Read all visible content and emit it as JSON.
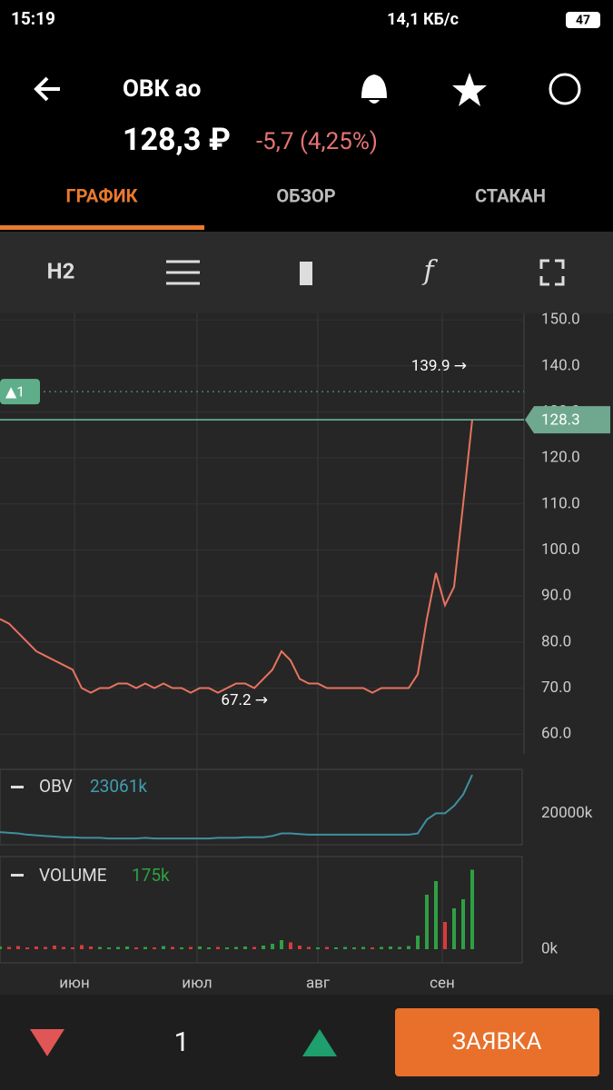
{
  "status_bar": {
    "time": "15:19",
    "speed": "14,1 КБ/с",
    "battery": "47"
  },
  "header": {
    "title": "ОВК ао",
    "price": "128,3 ₽",
    "change": "-5,7 (4,25%)"
  },
  "tabs": [
    "ГРАФИК",
    "ОБЗОР",
    "СТАКАН"
  ],
  "toolbar": {
    "interval": "H2"
  },
  "chart_data": {
    "type": "line",
    "ylim": [
      55.7,
      151.4
    ],
    "yticks": [
      {
        "value": 60,
        "label": "60.0"
      },
      {
        "value": 70,
        "label": "70.0"
      },
      {
        "value": 80,
        "label": "80.0"
      },
      {
        "value": 90,
        "label": "90.0"
      },
      {
        "value": 100,
        "label": "100.0"
      },
      {
        "value": 110,
        "label": "110.0"
      },
      {
        "value": 120,
        "label": "120.0"
      },
      {
        "value": 130,
        "label": "130.0"
      },
      {
        "value": 140,
        "label": "140.0"
      },
      {
        "value": 150,
        "label": "150.0"
      }
    ],
    "x_labels": [
      "июн",
      "июл",
      "авг",
      "сен"
    ],
    "series": [
      {
        "color": "#e8735f",
        "values": [
          85,
          84,
          82,
          80,
          78,
          77,
          76,
          75,
          74,
          70,
          69,
          70,
          70,
          71,
          71,
          70,
          71,
          70,
          71,
          70,
          70,
          69,
          70,
          70,
          69,
          70,
          71,
          71,
          70,
          72,
          74,
          78,
          76,
          72,
          71,
          71,
          70,
          70,
          70,
          70,
          70,
          69,
          70,
          70,
          70,
          70,
          73,
          85,
          95,
          88,
          92,
          110,
          128.3
        ]
      }
    ],
    "current_price": {
      "value": 128.3,
      "label": "128.3"
    },
    "alert": {
      "value": 134.4,
      "label": "▲1"
    },
    "annotations": [
      {
        "value": 139.9,
        "label": "139.9 →"
      },
      {
        "value": 67.2,
        "label": "67.2 →"
      }
    ],
    "obv": {
      "name": "OBV",
      "last": "23061k",
      "ylim": [
        17500,
        23500
      ],
      "ticks": [
        {
          "value": 20000,
          "label": "20000k"
        }
      ],
      "values": [
        18500,
        18450,
        18400,
        18300,
        18250,
        18200,
        18150,
        18100,
        18100,
        18050,
        18050,
        18050,
        18000,
        18000,
        18000,
        18000,
        18050,
        18000,
        18000,
        18000,
        18000,
        18000,
        18000,
        18000,
        18050,
        18050,
        18050,
        18100,
        18100,
        18100,
        18200,
        18400,
        18400,
        18350,
        18300,
        18300,
        18300,
        18300,
        18300,
        18300,
        18300,
        18300,
        18300,
        18300,
        18300,
        18300,
        18400,
        19500,
        20000,
        20000,
        20600,
        21500,
        23061
      ]
    },
    "volume": {
      "name": "VOLUME",
      "last": "175k",
      "ylim": [
        0,
        200
      ],
      "ticks": [
        {
          "value": 0,
          "label": "0k"
        }
      ],
      "values": [
        6,
        5,
        7,
        4,
        6,
        5,
        8,
        5,
        4,
        9,
        6,
        5,
        4,
        5,
        6,
        4,
        5,
        4,
        7,
        5,
        4,
        5,
        6,
        4,
        5,
        4,
        5,
        6,
        5,
        8,
        12,
        20,
        15,
        8,
        5,
        4,
        5,
        4,
        5,
        4,
        5,
        4,
        5,
        6,
        5,
        7,
        30,
        120,
        150,
        60,
        90,
        110,
        175
      ]
    }
  },
  "bottom_bar": {
    "quantity": "1",
    "order_button": "ЗАЯВКА"
  }
}
